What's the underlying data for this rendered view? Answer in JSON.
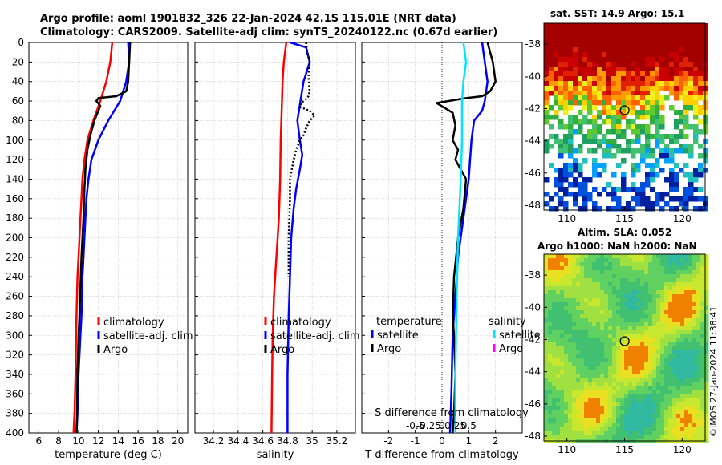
{
  "titles": {
    "line1": "Argo profile: aoml 1901832_326 22-Jan-2024 42.1S 115.01E (NRT data)",
    "line2": "Climatology: CARS2009. Satellite-adj clim: synTS_20240122.nc (0.67d earlier)"
  },
  "colors": {
    "climatology": "#ff0000",
    "satellite": "#0000ff",
    "argo": "#000000",
    "salinity_satellite": "#00e5ff",
    "salinity_argo": "#ff00ff"
  },
  "chart_data": [
    {
      "type": "line",
      "panel": "temperature",
      "xlabel": "temperature (deg C)",
      "ylabel": "",
      "xlim": [
        5,
        21
      ],
      "ylim": [
        400,
        0
      ],
      "xticks": [
        6,
        8,
        10,
        12,
        14,
        16,
        18,
        20
      ],
      "yticks": [
        0,
        20,
        40,
        60,
        80,
        100,
        120,
        140,
        160,
        180,
        200,
        220,
        240,
        260,
        280,
        300,
        320,
        340,
        360,
        380,
        400
      ],
      "grid": true,
      "legend": [
        "climatology",
        "satellite-adj. clim",
        "Argo"
      ],
      "series": [
        {
          "name": "climatology",
          "style": "solid",
          "color_key": "climatology",
          "x": [
            13.4,
            13.2,
            12.8,
            12.2,
            11.5,
            10.9,
            10.6,
            10.4,
            10.3,
            10.2,
            10.1,
            10.0,
            9.9,
            9.8,
            9.75,
            9.7,
            9.6,
            9.5
          ],
          "y": [
            0,
            20,
            40,
            60,
            80,
            100,
            120,
            140,
            160,
            180,
            200,
            220,
            240,
            280,
            300,
            340,
            380,
            400
          ]
        },
        {
          "name": "satellite-adj. clim",
          "style": "solid",
          "color_key": "satellite",
          "x": [
            15.0,
            15.1,
            14.8,
            14.2,
            13.0,
            12.0,
            11.3,
            11.0,
            10.8,
            10.7,
            10.6,
            10.5,
            10.4,
            10.3,
            10.2,
            10.0,
            9.9,
            9.8
          ],
          "y": [
            0,
            20,
            40,
            60,
            80,
            100,
            120,
            140,
            160,
            180,
            200,
            220,
            240,
            280,
            300,
            340,
            380,
            400
          ]
        },
        {
          "name": "Argo",
          "style": "solid",
          "color_key": "argo",
          "x": [
            15.2,
            15.1,
            15.0,
            14.8,
            13.8,
            12.0,
            11.8,
            12.2,
            11.6,
            11.2,
            10.9,
            10.7,
            10.6,
            10.5,
            10.4,
            10.3,
            10.2,
            10.1,
            10.0,
            9.9,
            9.85,
            9.8
          ],
          "y": [
            0,
            20,
            40,
            50,
            55,
            57,
            60,
            65,
            80,
            95,
            110,
            130,
            150,
            180,
            200,
            220,
            250,
            280,
            300,
            340,
            380,
            400
          ]
        }
      ]
    },
    {
      "type": "line",
      "panel": "salinity",
      "xlabel": "salinity",
      "ylabel": "",
      "xlim": [
        34.05,
        35.35
      ],
      "ylim": [
        400,
        0
      ],
      "xticks": [
        34.2,
        34.4,
        34.6,
        34.8,
        35,
        35.2
      ],
      "grid": true,
      "legend": [
        "climatology",
        "satellite-adj. clim",
        "Argo"
      ],
      "series": [
        {
          "name": "climatology",
          "style": "solid",
          "color_key": "climatology",
          "x": [
            34.79,
            34.77,
            34.76,
            34.755,
            34.75,
            34.745,
            34.74,
            34.735,
            34.73,
            34.72,
            34.71,
            34.7,
            34.69,
            34.685,
            34.68,
            34.675,
            34.67
          ],
          "y": [
            0,
            20,
            40,
            60,
            80,
            100,
            140,
            160,
            180,
            200,
            220,
            240,
            260,
            280,
            300,
            340,
            400
          ]
        },
        {
          "name": "satellite-adj. clim",
          "style": "solid",
          "color_key": "satellite",
          "x": [
            34.82,
            34.95,
            34.98,
            34.93,
            34.88,
            34.9,
            34.92,
            34.9,
            34.87,
            34.85,
            34.83,
            34.82,
            34.81,
            34.8,
            34.8
          ],
          "y": [
            0,
            5,
            20,
            40,
            80,
            100,
            115,
            130,
            150,
            170,
            200,
            240,
            280,
            340,
            400
          ]
        },
        {
          "name": "Argo",
          "style": "dotted",
          "color_key": "argo",
          "x": [
            34.95,
            34.96,
            34.98,
            34.97,
            34.98,
            34.97,
            34.95,
            34.91,
            34.9,
            34.98,
            35.02,
            34.98,
            34.95,
            34.93,
            34.9,
            34.87,
            34.85,
            34.82,
            34.82,
            34.81,
            34.81
          ],
          "y": [
            0,
            10,
            20,
            35,
            50,
            55,
            58,
            62,
            66,
            70,
            75,
            80,
            88,
            95,
            100,
            110,
            120,
            140,
            160,
            200,
            240
          ]
        }
      ]
    },
    {
      "type": "line",
      "panel": "difference",
      "xlabel": "T difference from climatology",
      "xlabel_top": "S difference from climatology",
      "xlim": [
        -3,
        3
      ],
      "ylim": [
        400,
        0
      ],
      "xticks": [
        -2,
        -1,
        0,
        1,
        2
      ],
      "xticks_top": [
        "-0.5",
        "-0.25",
        "0",
        "0.25",
        "0.5"
      ],
      "xticks_top_pos": [
        -1,
        -0.5,
        0,
        0.5,
        1
      ],
      "grid": true,
      "legend_temperature_title": "temperature",
      "legend_salinity_title": "salinity",
      "legend_temperature": [
        "satellite",
        "Argo"
      ],
      "legend_salinity": [
        "satellite",
        "Argo"
      ],
      "series": [
        {
          "name": "temperature satellite",
          "style": "solid",
          "color_key": "satellite",
          "x": [
            1.5,
            1.6,
            1.7,
            1.6,
            1.5,
            1.2,
            1.1,
            1.05,
            1.0,
            0.9,
            0.8,
            0.7,
            0.6,
            0.5,
            0.4,
            0.35,
            0.3
          ],
          "y": [
            0,
            20,
            40,
            60,
            70,
            80,
            100,
            120,
            140,
            160,
            180,
            200,
            220,
            260,
            300,
            360,
            400
          ]
        },
        {
          "name": "temperature Argo",
          "style": "solid",
          "color_key": "argo",
          "x": [
            1.7,
            1.9,
            2.0,
            1.8,
            1.5,
            0.9,
            -0.2,
            0.4,
            0.5,
            0.4,
            0.6,
            0.5,
            0.9,
            0.8,
            0.6,
            0.45,
            0.4,
            0.45,
            0.5,
            0.45,
            0.4
          ],
          "y": [
            0,
            20,
            40,
            50,
            55,
            57,
            62,
            72,
            85,
            100,
            110,
            120,
            140,
            170,
            200,
            240,
            280,
            300,
            340,
            380,
            400
          ]
        },
        {
          "name": "salinity satellite",
          "style": "solid",
          "color_key": "salinity_satellite",
          "x": [
            0.8,
            0.9,
            0.8,
            0.75,
            0.75,
            0.7,
            0.65,
            0.6,
            0.55,
            0.5,
            0.5
          ],
          "y": [
            0,
            20,
            40,
            60,
            100,
            140,
            170,
            200,
            260,
            340,
            400
          ]
        }
      ]
    },
    {
      "type": "heatmap",
      "panel": "sst_map",
      "title": "sat. SST: 14.9 Argo: 15.1",
      "xticks": [
        "110",
        "115",
        "120"
      ],
      "yticks": [
        "-38",
        "-40",
        "-42",
        "-44",
        "-46",
        "-48"
      ],
      "xlim": [
        108,
        122
      ],
      "ylim": [
        -48.3,
        -36.7
      ],
      "xtick_vals": [
        110,
        115,
        120
      ],
      "ytick_vals": [
        -38,
        -40,
        -42,
        -44,
        -46,
        -48
      ],
      "marker": {
        "lon": 115.01,
        "lat": -42.1
      }
    },
    {
      "type": "heatmap",
      "panel": "sla_map",
      "title_line1": "Altim. SLA: 0.052",
      "title_line2": "Argo h1000: NaN h2000: NaN",
      "xticks": [
        "110",
        "115",
        "120"
      ],
      "yticks": [
        "-38",
        "-40",
        "-42",
        "-44",
        "-46",
        "-48"
      ],
      "xlim": [
        108,
        122
      ],
      "ylim": [
        -48.3,
        -36.7
      ],
      "xtick_vals": [
        110,
        115,
        120
      ],
      "ytick_vals": [
        -38,
        -40,
        -42,
        -44,
        -46,
        -48
      ],
      "marker": {
        "lon": 115.01,
        "lat": -42.1
      }
    }
  ],
  "credit": "©IMOS 27-Jan-2024 11:38:41"
}
